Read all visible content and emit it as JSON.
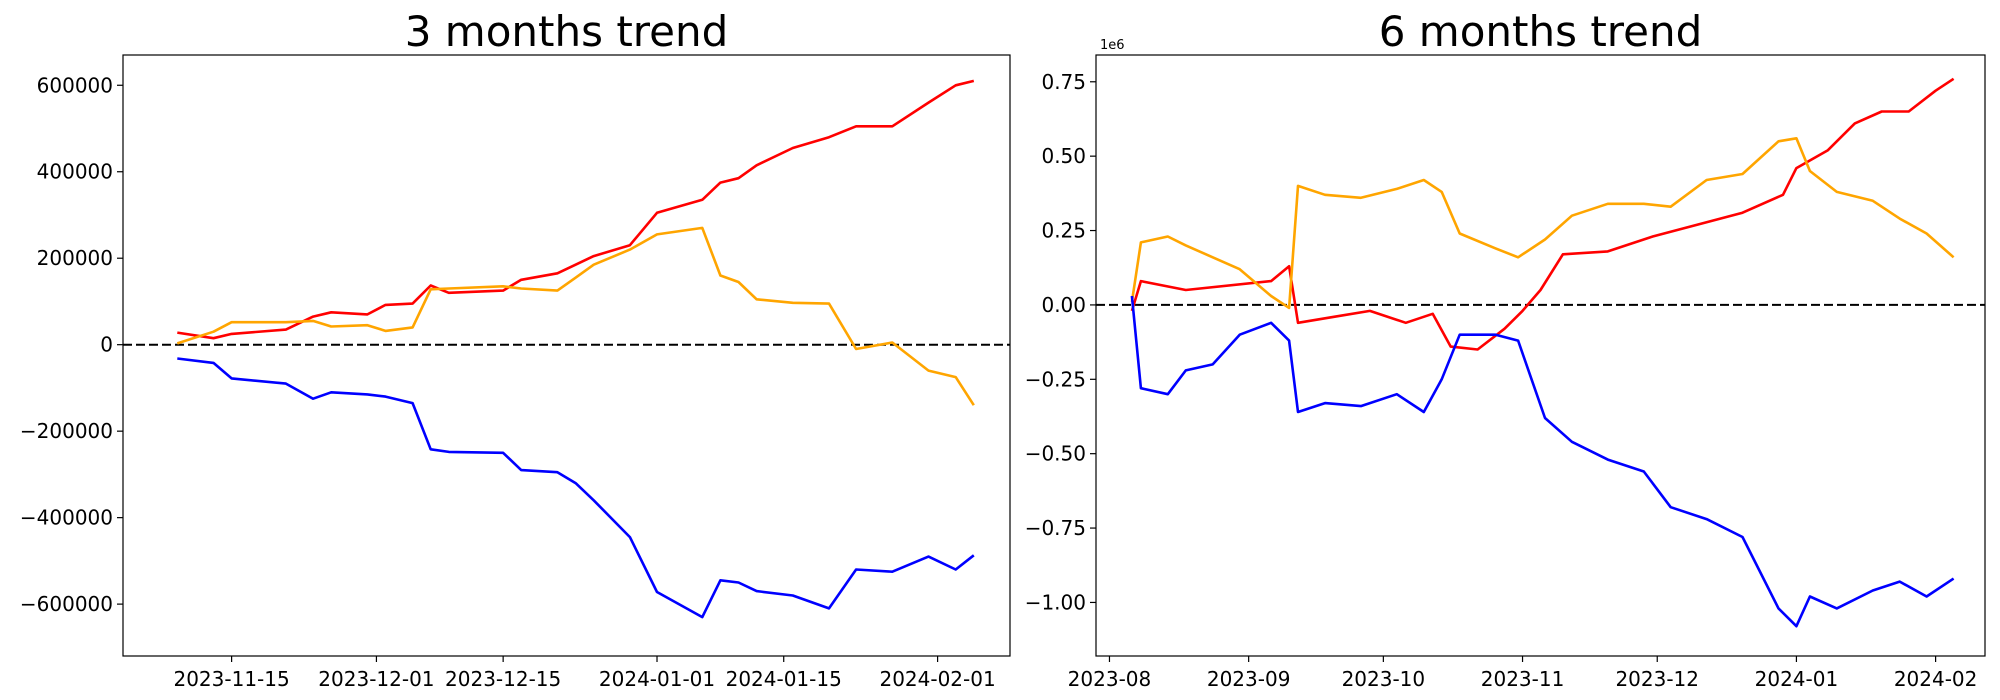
{
  "chart_data": [
    {
      "type": "line",
      "title": "3 months trend",
      "xlabel": "",
      "ylabel": "",
      "grid": false,
      "x_ticks": [
        "2023-11-15",
        "2023-12-01",
        "2023-12-15",
        "2024-01-01",
        "2024-01-15",
        "2024-02-01"
      ],
      "y_ticks": [
        "−600000",
        "−400000",
        "−200000",
        "0",
        "200000",
        "400000",
        "600000"
      ],
      "y_offset_label": "",
      "xlim": [
        "2023-11-03",
        "2024-02-09"
      ],
      "ylim": [
        -720000,
        670000
      ],
      "reference_line": {
        "y": 0,
        "style": "dashed",
        "color": "#000000"
      },
      "series": [
        {
          "color": "#ff0000",
          "points": [
            [
              "2023-11-09",
              28000
            ],
            [
              "2023-11-13",
              15000
            ],
            [
              "2023-11-15",
              25000
            ],
            [
              "2023-11-21",
              35000
            ],
            [
              "2023-11-24",
              65000
            ],
            [
              "2023-11-26",
              75000
            ],
            [
              "2023-11-30",
              70000
            ],
            [
              "2023-12-02",
              92000
            ],
            [
              "2023-12-05",
              95000
            ],
            [
              "2023-12-07",
              137000
            ],
            [
              "2023-12-09",
              120000
            ],
            [
              "2023-12-15",
              125000
            ],
            [
              "2023-12-17",
              150000
            ],
            [
              "2023-12-21",
              165000
            ],
            [
              "2023-12-23",
              185000
            ],
            [
              "2023-12-25",
              205000
            ],
            [
              "2023-12-29",
              230000
            ],
            [
              "2024-01-01",
              305000
            ],
            [
              "2024-01-06",
              335000
            ],
            [
              "2024-01-08",
              375000
            ],
            [
              "2024-01-10",
              385000
            ],
            [
              "2024-01-12",
              415000
            ],
            [
              "2024-01-16",
              455000
            ],
            [
              "2024-01-20",
              480000
            ],
            [
              "2024-01-23",
              505000
            ],
            [
              "2024-01-27",
              505000
            ],
            [
              "2024-01-31",
              560000
            ],
            [
              "2024-02-03",
              600000
            ],
            [
              "2024-02-05",
              610000
            ]
          ]
        },
        {
          "color": "#ffa500",
          "points": [
            [
              "2023-11-09",
              3000
            ],
            [
              "2023-11-13",
              30000
            ],
            [
              "2023-11-15",
              52000
            ],
            [
              "2023-11-21",
              52000
            ],
            [
              "2023-11-24",
              55000
            ],
            [
              "2023-11-26",
              42000
            ],
            [
              "2023-11-30",
              45000
            ],
            [
              "2023-12-02",
              32000
            ],
            [
              "2023-12-05",
              40000
            ],
            [
              "2023-12-07",
              128000
            ],
            [
              "2023-12-09",
              130000
            ],
            [
              "2023-12-15",
              135000
            ],
            [
              "2023-12-17",
              130000
            ],
            [
              "2023-12-21",
              125000
            ],
            [
              "2023-12-23",
              155000
            ],
            [
              "2023-12-25",
              185000
            ],
            [
              "2023-12-29",
              220000
            ],
            [
              "2024-01-01",
              255000
            ],
            [
              "2024-01-06",
              270000
            ],
            [
              "2024-01-08",
              160000
            ],
            [
              "2024-01-10",
              145000
            ],
            [
              "2024-01-12",
              105000
            ],
            [
              "2024-01-16",
              97000
            ],
            [
              "2024-01-20",
              95000
            ],
            [
              "2024-01-23",
              -10000
            ],
            [
              "2024-01-27",
              5000
            ],
            [
              "2024-01-31",
              -60000
            ],
            [
              "2024-02-03",
              -75000
            ],
            [
              "2024-02-05",
              -140000
            ]
          ]
        },
        {
          "color": "#0000ff",
          "points": [
            [
              "2023-11-09",
              -32000
            ],
            [
              "2023-11-13",
              -42000
            ],
            [
              "2023-11-15",
              -78000
            ],
            [
              "2023-11-21",
              -90000
            ],
            [
              "2023-11-24",
              -125000
            ],
            [
              "2023-11-26",
              -110000
            ],
            [
              "2023-11-30",
              -115000
            ],
            [
              "2023-12-02",
              -120000
            ],
            [
              "2023-12-05",
              -135000
            ],
            [
              "2023-12-07",
              -242000
            ],
            [
              "2023-12-09",
              -248000
            ],
            [
              "2023-12-15",
              -250000
            ],
            [
              "2023-12-17",
              -290000
            ],
            [
              "2023-12-21",
              -295000
            ],
            [
              "2023-12-23",
              -320000
            ],
            [
              "2023-12-25",
              -360000
            ],
            [
              "2023-12-29",
              -445000
            ],
            [
              "2024-01-01",
              -572000
            ],
            [
              "2024-01-06",
              -630000
            ],
            [
              "2024-01-08",
              -545000
            ],
            [
              "2024-01-10",
              -550000
            ],
            [
              "2024-01-12",
              -570000
            ],
            [
              "2024-01-16",
              -580000
            ],
            [
              "2024-01-20",
              -610000
            ],
            [
              "2024-01-23",
              -520000
            ],
            [
              "2024-01-27",
              -525000
            ],
            [
              "2024-01-31",
              -490000
            ],
            [
              "2024-02-03",
              -520000
            ],
            [
              "2024-02-05",
              -487000
            ]
          ]
        }
      ]
    },
    {
      "type": "line",
      "title": "6 months trend",
      "xlabel": "",
      "ylabel": "",
      "grid": false,
      "x_ticks": [
        "2023-08",
        "2023-09",
        "2023-10",
        "2023-11",
        "2023-12",
        "2024-01",
        "2024-02"
      ],
      "y_ticks": [
        "−1.00",
        "−0.75",
        "−0.50",
        "−0.25",
        "0.00",
        "0.25",
        "0.50",
        "0.75"
      ],
      "y_offset_label": "1e6",
      "xlim": [
        "2023-07-29",
        "2024-02-12"
      ],
      "ylim": [
        -1.18,
        0.84
      ],
      "reference_line": {
        "y": 0,
        "style": "dashed",
        "color": "#000000"
      },
      "series": [
        {
          "color": "#ff0000",
          "points": [
            [
              "2023-08-06",
              -0.02
            ],
            [
              "2023-08-08",
              0.08
            ],
            [
              "2023-08-18",
              0.05
            ],
            [
              "2023-09-06",
              0.08
            ],
            [
              "2023-09-10",
              0.13
            ],
            [
              "2023-09-12",
              -0.06
            ],
            [
              "2023-09-20",
              -0.04
            ],
            [
              "2023-09-28",
              -0.02
            ],
            [
              "2023-10-06",
              -0.06
            ],
            [
              "2023-10-12",
              -0.03
            ],
            [
              "2023-10-16",
              -0.14
            ],
            [
              "2023-10-22",
              -0.15
            ],
            [
              "2023-10-28",
              -0.08
            ],
            [
              "2023-11-01",
              -0.02
            ],
            [
              "2023-11-05",
              0.05
            ],
            [
              "2023-11-10",
              0.17
            ],
            [
              "2023-11-20",
              0.18
            ],
            [
              "2023-11-30",
              0.23
            ],
            [
              "2023-12-10",
              0.27
            ],
            [
              "2023-12-20",
              0.31
            ],
            [
              "2023-12-29",
              0.37
            ],
            [
              "2024-01-01",
              0.46
            ],
            [
              "2024-01-08",
              0.52
            ],
            [
              "2024-01-14",
              0.61
            ],
            [
              "2024-01-20",
              0.65
            ],
            [
              "2024-01-26",
              0.65
            ],
            [
              "2024-02-01",
              0.72
            ],
            [
              "2024-02-05",
              0.76
            ]
          ]
        },
        {
          "color": "#ffa500",
          "points": [
            [
              "2023-08-06",
              0.01
            ],
            [
              "2023-08-08",
              0.21
            ],
            [
              "2023-08-14",
              0.23
            ],
            [
              "2023-08-18",
              0.2
            ],
            [
              "2023-08-24",
              0.16
            ],
            [
              "2023-08-30",
              0.12
            ],
            [
              "2023-09-06",
              0.03
            ],
            [
              "2023-09-10",
              -0.01
            ],
            [
              "2023-09-12",
              0.4
            ],
            [
              "2023-09-18",
              0.37
            ],
            [
              "2023-09-26",
              0.36
            ],
            [
              "2023-10-04",
              0.39
            ],
            [
              "2023-10-10",
              0.42
            ],
            [
              "2023-10-14",
              0.38
            ],
            [
              "2023-10-18",
              0.24
            ],
            [
              "2023-10-26",
              0.19
            ],
            [
              "2023-10-31",
              0.16
            ],
            [
              "2023-11-06",
              0.22
            ],
            [
              "2023-11-12",
              0.3
            ],
            [
              "2023-11-20",
              0.34
            ],
            [
              "2023-11-28",
              0.34
            ],
            [
              "2023-12-04",
              0.33
            ],
            [
              "2023-12-12",
              0.42
            ],
            [
              "2023-12-20",
              0.44
            ],
            [
              "2023-12-28",
              0.55
            ],
            [
              "2024-01-01",
              0.56
            ],
            [
              "2024-01-04",
              0.45
            ],
            [
              "2024-01-10",
              0.38
            ],
            [
              "2024-01-18",
              0.35
            ],
            [
              "2024-01-24",
              0.29
            ],
            [
              "2024-01-30",
              0.24
            ],
            [
              "2024-02-05",
              0.16
            ]
          ]
        },
        {
          "color": "#0000ff",
          "points": [
            [
              "2023-08-06",
              0.03
            ],
            [
              "2023-08-08",
              -0.28
            ],
            [
              "2023-08-14",
              -0.3
            ],
            [
              "2023-08-18",
              -0.22
            ],
            [
              "2023-08-24",
              -0.2
            ],
            [
              "2023-08-30",
              -0.1
            ],
            [
              "2023-09-06",
              -0.06
            ],
            [
              "2023-09-10",
              -0.12
            ],
            [
              "2023-09-12",
              -0.36
            ],
            [
              "2023-09-18",
              -0.33
            ],
            [
              "2023-09-26",
              -0.34
            ],
            [
              "2023-10-04",
              -0.3
            ],
            [
              "2023-10-10",
              -0.36
            ],
            [
              "2023-10-14",
              -0.25
            ],
            [
              "2023-10-18",
              -0.1
            ],
            [
              "2023-10-26",
              -0.1
            ],
            [
              "2023-10-31",
              -0.12
            ],
            [
              "2023-11-06",
              -0.38
            ],
            [
              "2023-11-12",
              -0.46
            ],
            [
              "2023-11-20",
              -0.52
            ],
            [
              "2023-11-28",
              -0.56
            ],
            [
              "2023-12-04",
              -0.68
            ],
            [
              "2023-12-12",
              -0.72
            ],
            [
              "2023-12-20",
              -0.78
            ],
            [
              "2023-12-28",
              -1.02
            ],
            [
              "2024-01-01",
              -1.08
            ],
            [
              "2024-01-04",
              -0.98
            ],
            [
              "2024-01-10",
              -1.02
            ],
            [
              "2024-01-18",
              -0.96
            ],
            [
              "2024-01-24",
              -0.93
            ],
            [
              "2024-01-30",
              -0.98
            ],
            [
              "2024-02-05",
              -0.92
            ]
          ]
        }
      ]
    }
  ]
}
